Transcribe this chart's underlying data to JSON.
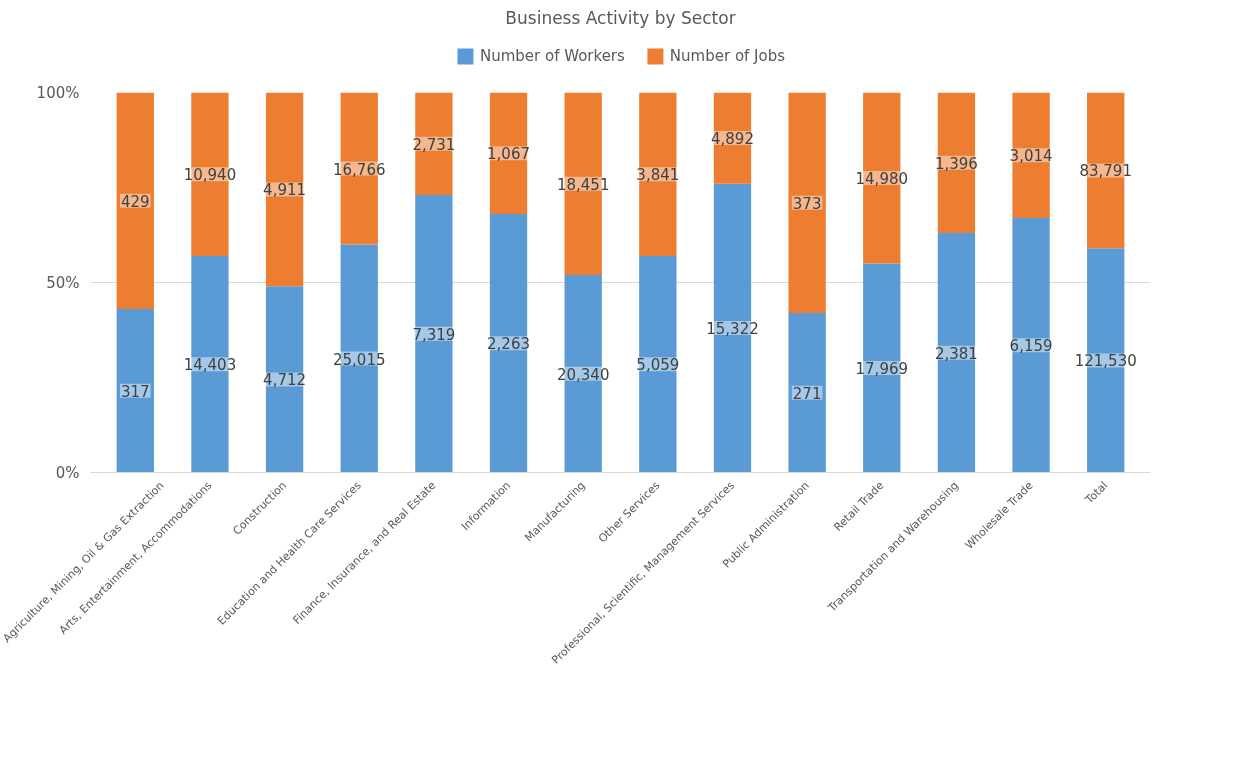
{
  "chart_data": {
    "type": "bar",
    "title": "Business Activity by Sector",
    "stacked": true,
    "categories": [
      "Agriculture, Mining, Oil & Gas Extraction",
      "Arts, Entertainment, Accommodations",
      "Construction",
      "Education and Health Care Services",
      "Finance, Insurance, and Real Estate",
      "Information",
      "Manufacturing",
      "Other Services",
      "Professional, Scientific, Management Services",
      "Public Administration",
      "Retail Trade",
      "Transportation and Warehousing",
      "Wholesale Trade",
      "Total"
    ],
    "series": [
      {
        "name": "Number of Workers",
        "color": "#5b9bd5",
        "values": [
          43,
          57,
          49,
          60,
          73,
          68,
          52,
          57,
          76,
          42,
          55,
          63,
          67,
          59
        ]
      },
      {
        "name": "Number of Jobs",
        "color": "#ed7d31",
        "values": [
          57,
          43,
          51,
          40,
          27,
          32,
          48,
          43,
          24,
          58,
          45,
          37,
          33,
          41
        ]
      }
    ],
    "annotations": [
      "317",
      "14,403",
      "4,712",
      "25,015",
      "7,319",
      "2,263",
      "20,340",
      "5,059",
      "15,322",
      "271",
      "17,969",
      "2,381",
      "6,159",
      "121,530",
      "429",
      "10,940",
      "4,911",
      "16,766",
      "2,731",
      "1,067",
      "18,451",
      "3,841",
      "4,892",
      "373",
      "14,980",
      "1,396",
      "3,014",
      "83,791"
    ],
    "ylim": [
      0,
      100
    ],
    "yticks": [
      {
        "value": 0,
        "label": "0%"
      },
      {
        "value": 50,
        "label": "50%"
      },
      {
        "value": 100,
        "label": "100%"
      }
    ],
    "grid": "y",
    "legend": "top"
  }
}
